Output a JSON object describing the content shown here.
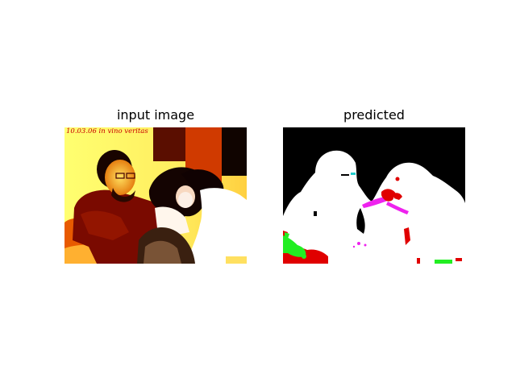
{
  "figure": {
    "left_title": "input image",
    "right_title": "predicted"
  },
  "input_image": {
    "date_stamp": "10.03.06 in vino veritas"
  },
  "colors": {
    "background": "#ffffff",
    "mask_background": "#000000",
    "mask_person": "#ffffff",
    "mask_red": "#e00000",
    "mask_green": "#22ee22",
    "mask_magenta": "#ee22ee",
    "mask_cyan": "#22cccc"
  }
}
